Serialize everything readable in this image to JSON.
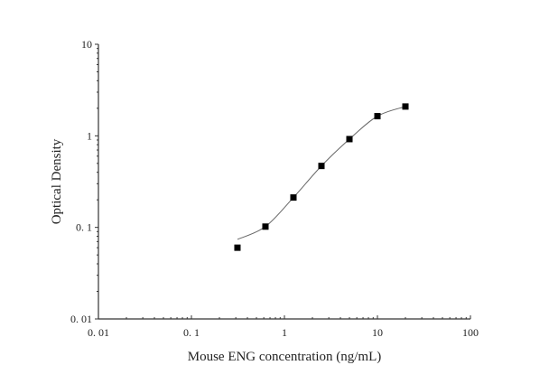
{
  "chart_data": {
    "type": "scatter",
    "xlabel": "Mouse ENG concentration (ng/mL)",
    "ylabel": "Optical Density",
    "xscale": "log",
    "yscale": "log",
    "xlim": [
      0.01,
      100
    ],
    "ylim": [
      0.01,
      10
    ],
    "xticks": [
      "0. 01",
      "0. 1",
      "1",
      "10",
      "100"
    ],
    "yticks": [
      "0. 01",
      "0. 1",
      "1",
      "10"
    ],
    "xtick_values": [
      0.01,
      0.1,
      1,
      10,
      100
    ],
    "ytick_values": [
      0.01,
      0.1,
      1,
      10
    ],
    "grid": false,
    "points": {
      "x": [
        0.3125,
        0.625,
        1.25,
        2.5,
        5,
        10,
        20
      ],
      "y": [
        0.06,
        0.102,
        0.212,
        0.469,
        0.921,
        1.64,
        2.09
      ]
    },
    "fit_curve": {
      "x": [
        0.3125,
        0.625,
        1.25,
        2.5,
        5,
        10,
        20
      ],
      "y": [
        0.074,
        0.102,
        0.212,
        0.469,
        0.921,
        1.64,
        2.09
      ]
    },
    "colors": {
      "marker": "#000000",
      "curve": "#666666",
      "axis": "#333333"
    }
  }
}
